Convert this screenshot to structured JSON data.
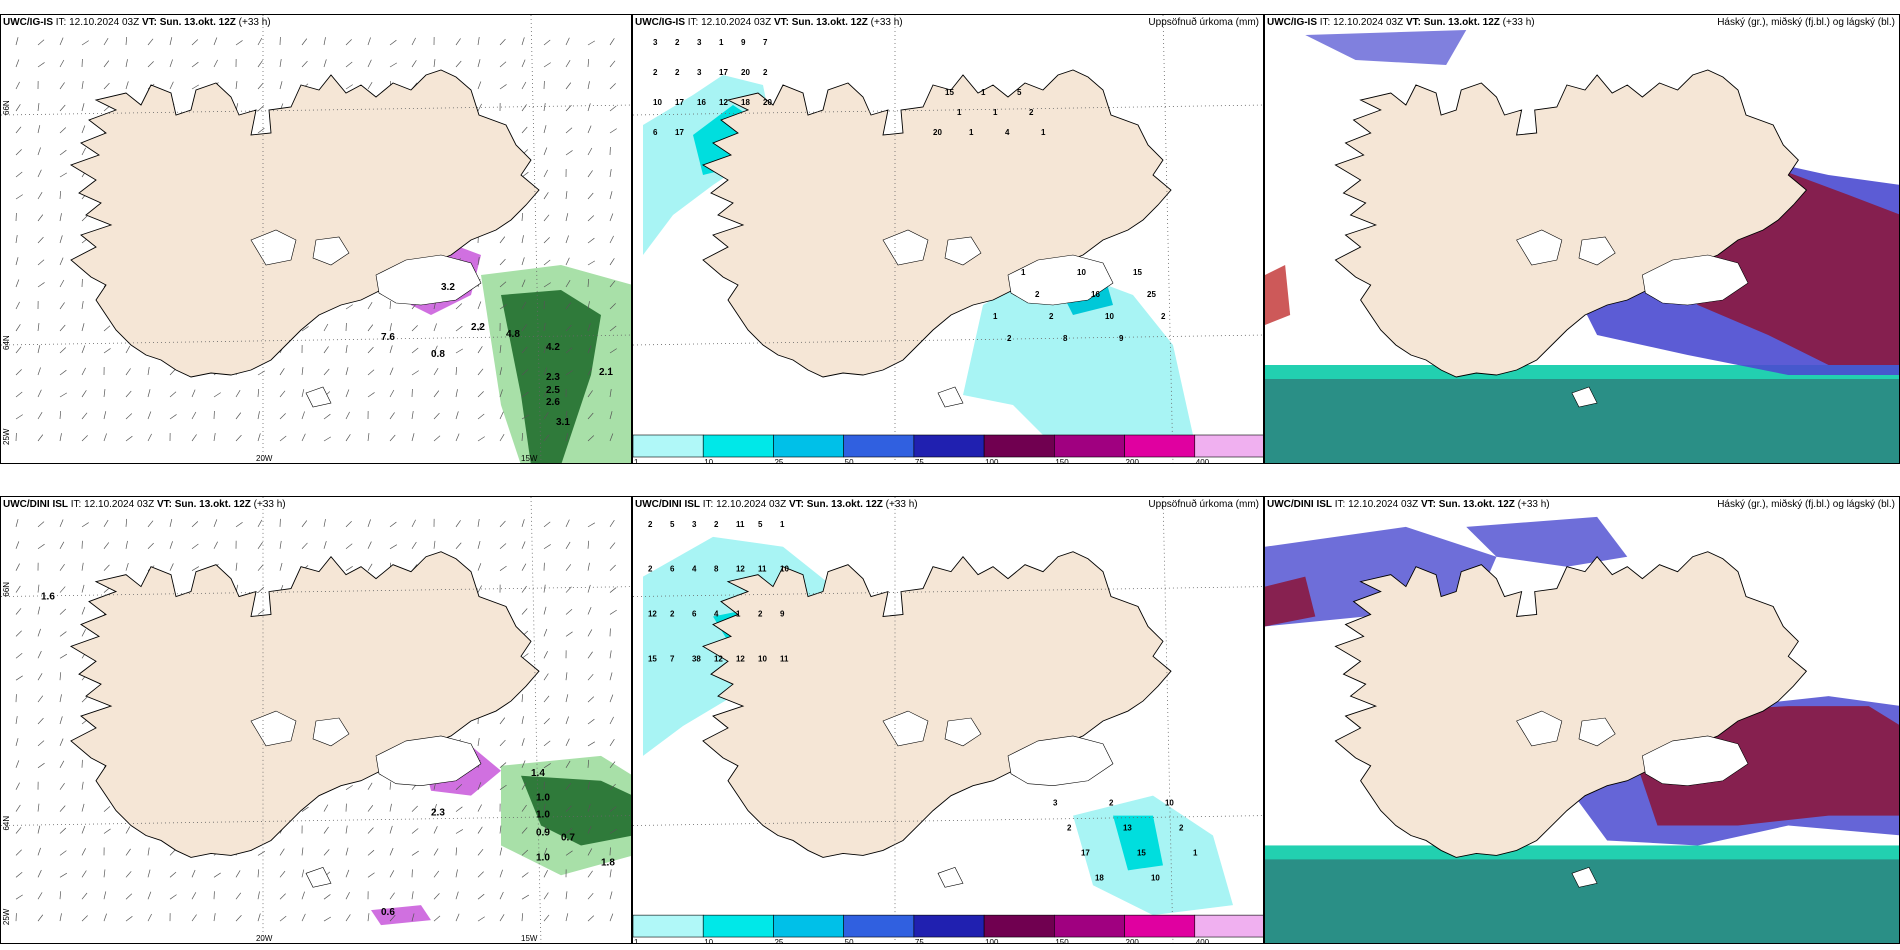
{
  "panels": [
    {
      "id": "tl",
      "src": "UWC/IG-IS",
      "it": "IT: 12.10.2024 03Z",
      "vt": "VT: Sun. 13.okt. 12Z",
      "step": "(+33 h)",
      "right": ""
    },
    {
      "id": "tm",
      "src": "UWC/IG-IS",
      "it": "IT: 12.10.2024 03Z",
      "vt": "VT: Sun. 13.okt. 12Z",
      "step": "(+33 h)",
      "right": "Uppsöfnuð úrkoma (mm)"
    },
    {
      "id": "tr",
      "src": "UWC/IG-IS",
      "it": "IT: 12.10.2024 03Z",
      "vt": "VT: Sun. 13.okt. 12Z",
      "step": "(+33 h)",
      "right": "Háský (gr.), miðský (fj.bl.) og lágský (bl.)"
    },
    {
      "id": "bl",
      "src": "UWC/DINI ISL",
      "it": "IT: 12.10.2024 03Z",
      "vt": "VT: Sun. 13.okt. 12Z",
      "step": "(+33 h)",
      "right": ""
    },
    {
      "id": "bm",
      "src": "UWC/DINI ISL",
      "it": "IT: 12.10.2024 03Z",
      "vt": "VT: Sun. 13.okt. 12Z",
      "step": "(+33 h)",
      "right": "Uppsöfnuð úrkoma (mm)"
    },
    {
      "id": "br",
      "src": "UWC/DINI ISL",
      "it": "IT: 12.10.2024 03Z",
      "vt": "VT: Sun. 13.okt. 12Z",
      "step": "(+33 h)",
      "right": "Háský (gr.), miðský (fj.bl.) og lágský (bl.)"
    }
  ],
  "graticule": {
    "lat66": "66N",
    "lat64": "64N",
    "lon25": "25W",
    "lon20": "20W",
    "lon15": "15W"
  },
  "colorbar": {
    "ticks": [
      "1",
      "10",
      "25",
      "50",
      "75",
      "100",
      "150",
      "200",
      "400"
    ],
    "colors": [
      "#b0f8f8",
      "#00e8e8",
      "#00c0e8",
      "#3060e0",
      "#2020b0",
      "#700050",
      "#a00080",
      "#e000a0",
      "#f0b0f0"
    ]
  },
  "precip_labels": {
    "top": [
      "3",
      "2",
      "3",
      "1",
      "9",
      "7",
      "2",
      "2",
      "3",
      "17",
      "20",
      "2",
      "10",
      "17",
      "16",
      "12",
      "18",
      "20",
      "6",
      "17",
      "20",
      "15",
      "1",
      "1",
      "1",
      "1",
      "4",
      "5",
      "2",
      "1",
      "1",
      "2",
      "1",
      "2",
      "2",
      "8",
      "10",
      "16",
      "10",
      "9",
      "15",
      "25",
      "2"
    ],
    "bottom": [
      "2",
      "5",
      "3",
      "2",
      "11",
      "5",
      "1",
      "2",
      "6",
      "4",
      "8",
      "12",
      "11",
      "10",
      "12",
      "2",
      "6",
      "4",
      "1",
      "2",
      "9",
      "15",
      "7",
      "38",
      "12",
      "12",
      "10",
      "11",
      "3",
      "2",
      "17",
      "18",
      "2",
      "13",
      "15",
      "10",
      "10",
      "2",
      "1"
    ]
  },
  "wind_labels": {
    "top": [
      "4.8",
      "4.2",
      "2.1",
      "2.3",
      "2.5",
      "2.6",
      "3.1",
      "3.2",
      "2.2",
      "0.8",
      "7.6"
    ],
    "bottom": [
      "1.6",
      "1.0",
      "1.0",
      "0.9",
      "0.7",
      "1.0",
      "0.6",
      "2.3",
      "1.8",
      "1.4"
    ]
  }
}
